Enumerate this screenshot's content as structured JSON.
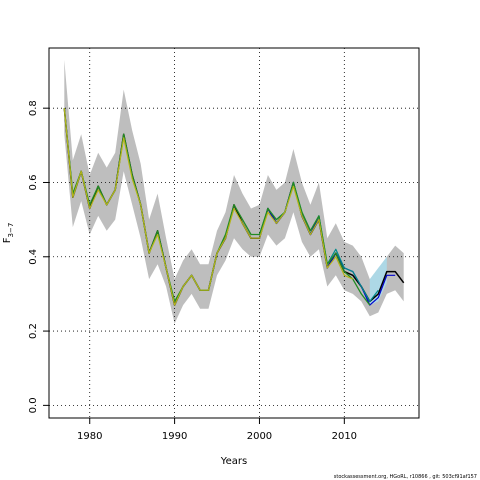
{
  "chart_data": {
    "type": "line",
    "title": "",
    "xlabel": "Years",
    "ylabel_main": "F",
    "ylabel_sub": "3−7",
    "xlim": [
      1975.2,
      2018.8
    ],
    "ylim": [
      -0.034,
      0.962
    ],
    "x_ticks": [
      1980,
      1990,
      2000,
      2010
    ],
    "x_tick_labels": [
      "1980",
      "1990",
      "2000",
      "2010"
    ],
    "y_ticks": [
      0.0,
      0.2,
      0.4,
      0.6,
      0.8
    ],
    "y_tick_labels": [
      "0.0",
      "0.2",
      "0.4",
      "0.6",
      "0.8"
    ],
    "grid": true,
    "legend": "none",
    "colors": {
      "band_main": "#bebebe",
      "band_light": "#add8e6",
      "grid": "#000000"
    },
    "band": {
      "x": [
        1977,
        1978,
        1979,
        1980,
        1981,
        1982,
        1983,
        1984,
        1985,
        1986,
        1987,
        1988,
        1989,
        1990,
        1991,
        1992,
        1993,
        1994,
        1995,
        1996,
        1997,
        1998,
        1999,
        2000,
        2001,
        2002,
        2003,
        2004,
        2005,
        2006,
        2007,
        2008,
        2009,
        2010,
        2011,
        2012,
        2013,
        2014,
        2015,
        2016,
        2017
      ],
      "upper": [
        0.93,
        0.66,
        0.73,
        0.62,
        0.68,
        0.64,
        0.68,
        0.85,
        0.74,
        0.65,
        0.5,
        0.57,
        0.45,
        0.34,
        0.39,
        0.42,
        0.38,
        0.38,
        0.47,
        0.52,
        0.62,
        0.57,
        0.53,
        0.54,
        0.62,
        0.58,
        0.6,
        0.69,
        0.6,
        0.54,
        0.6,
        0.45,
        0.49,
        0.44,
        0.43,
        0.4,
        0.34,
        0.35,
        0.4,
        0.43,
        0.41
      ],
      "lower": [
        0.73,
        0.48,
        0.55,
        0.46,
        0.51,
        0.47,
        0.5,
        0.63,
        0.54,
        0.45,
        0.34,
        0.38,
        0.32,
        0.22,
        0.27,
        0.3,
        0.26,
        0.26,
        0.35,
        0.39,
        0.45,
        0.42,
        0.4,
        0.4,
        0.46,
        0.43,
        0.45,
        0.52,
        0.44,
        0.4,
        0.42,
        0.32,
        0.35,
        0.31,
        0.3,
        0.28,
        0.24,
        0.25,
        0.3,
        0.31,
        0.28
      ]
    },
    "band_light": {
      "x": [
        2013,
        2014,
        2015
      ],
      "upper": [
        0.34,
        0.37,
        0.4
      ],
      "lower": [
        0.27,
        0.28,
        0.33
      ]
    },
    "series": [
      {
        "color": "#000000",
        "width": 1.5,
        "x": [
          1977,
          1978,
          1979,
          1980,
          1981,
          1982,
          1983,
          1984,
          1985,
          1986,
          1987,
          1988,
          1989,
          1990,
          1991,
          1992,
          1993,
          1994,
          1995,
          1996,
          1997,
          1998,
          1999,
          2000,
          2001,
          2002,
          2003,
          2004,
          2005,
          2006,
          2007,
          2008,
          2009,
          2010,
          2011,
          2012,
          2013,
          2014,
          2015,
          2016,
          2017
        ],
        "y": [
          0.8,
          0.56,
          0.63,
          0.53,
          0.59,
          0.54,
          0.58,
          0.73,
          0.62,
          0.54,
          0.41,
          0.47,
          0.37,
          0.27,
          0.32,
          0.35,
          0.31,
          0.31,
          0.41,
          0.45,
          0.54,
          0.49,
          0.45,
          0.45,
          0.53,
          0.49,
          0.52,
          0.6,
          0.51,
          0.46,
          0.5,
          0.37,
          0.41,
          0.36,
          0.35,
          0.32,
          0.28,
          0.3,
          0.36,
          0.36,
          0.33
        ]
      },
      {
        "color": "#0000cd",
        "width": 1.2,
        "x": [
          2000,
          2001,
          2002,
          2003,
          2004,
          2005,
          2006,
          2007,
          2008,
          2009,
          2010,
          2011,
          2012,
          2013,
          2014,
          2015,
          2016
        ],
        "y": [
          0.45,
          0.53,
          0.49,
          0.52,
          0.6,
          0.51,
          0.46,
          0.51,
          0.37,
          0.41,
          0.37,
          0.36,
          0.32,
          0.27,
          0.29,
          0.35,
          0.35
        ]
      },
      {
        "color": "#008b8b",
        "width": 1.2,
        "x": [
          2000,
          2001,
          2002,
          2003,
          2004,
          2005,
          2006,
          2007,
          2008,
          2009,
          2010,
          2011,
          2012,
          2013,
          2014
        ],
        "y": [
          0.46,
          0.53,
          0.5,
          0.52,
          0.6,
          0.52,
          0.47,
          0.51,
          0.38,
          0.42,
          0.37,
          0.36,
          0.32,
          0.28,
          0.31
        ]
      },
      {
        "color": "#228b22",
        "width": 1.3,
        "x": [
          1977,
          1978,
          1979,
          1980,
          1981,
          1982,
          1983,
          1984,
          1985,
          1986,
          1987,
          1988,
          1989,
          1990,
          1991,
          1992,
          1993,
          1994,
          1995,
          1996,
          1997,
          1998,
          1999,
          2000,
          2001,
          2002,
          2003,
          2004,
          2005,
          2006,
          2007,
          2008,
          2009,
          2010,
          2011,
          2012,
          2013
        ],
        "y": [
          0.8,
          0.57,
          0.63,
          0.54,
          0.59,
          0.54,
          0.58,
          0.73,
          0.62,
          0.54,
          0.41,
          0.47,
          0.37,
          0.28,
          0.32,
          0.35,
          0.31,
          0.31,
          0.41,
          0.46,
          0.54,
          0.5,
          0.46,
          0.46,
          0.53,
          0.5,
          0.52,
          0.6,
          0.52,
          0.47,
          0.51,
          0.38,
          0.41,
          0.36,
          0.34,
          0.3,
          0.27
        ]
      },
      {
        "color": "#b5b51a",
        "width": 1.2,
        "x": [
          1977,
          1978,
          1979,
          1980,
          1981,
          1982,
          1983,
          1984,
          1985,
          1986,
          1987,
          1988,
          1989,
          1990,
          1991,
          1992,
          1993,
          1994,
          1995,
          1996,
          1997,
          1998,
          1999,
          2000,
          2001,
          2002,
          2003,
          2004,
          2005,
          2006,
          2007,
          2008,
          2009,
          2010,
          2011
        ],
        "y": [
          0.8,
          0.56,
          0.63,
          0.53,
          0.58,
          0.54,
          0.58,
          0.72,
          0.61,
          0.54,
          0.41,
          0.46,
          0.37,
          0.27,
          0.32,
          0.35,
          0.31,
          0.31,
          0.41,
          0.45,
          0.53,
          0.49,
          0.45,
          0.45,
          0.52,
          0.49,
          0.52,
          0.59,
          0.51,
          0.46,
          0.5,
          0.37,
          0.4,
          0.35,
          0.34
        ]
      }
    ]
  },
  "footer_text": "stockassessment.org, HGoRL, r10866 , git: 503cf91af157"
}
